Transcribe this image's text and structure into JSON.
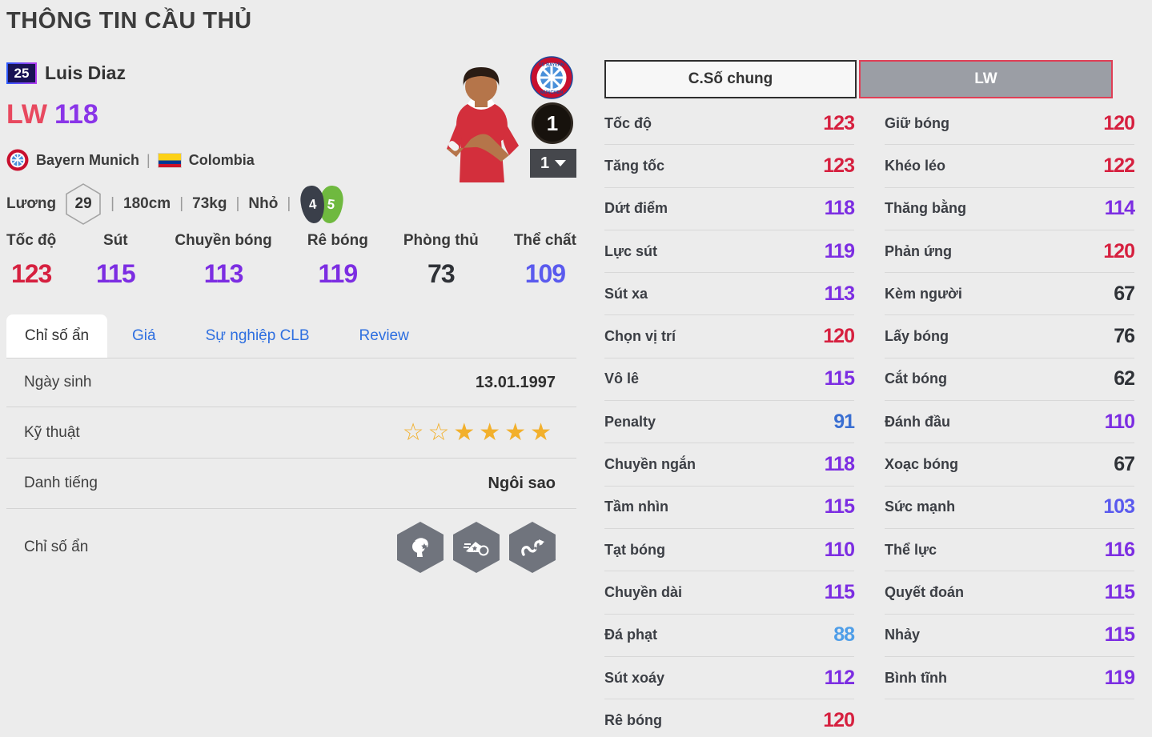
{
  "page": {
    "title": "THÔNG TIN CẦU THỦ"
  },
  "player": {
    "number": "25",
    "name": "Luis Diaz",
    "position": "LW",
    "rating": "118",
    "club": "Bayern Munich",
    "nation": "Colombia",
    "separator": "|",
    "salary_label": "Lương",
    "salary": "29",
    "height": "180cm",
    "weight": "73kg",
    "body_type": "Nhỏ",
    "weak_foot_left": "4",
    "weak_foot_right": "5",
    "level": "1",
    "level_selected": "1"
  },
  "main_stats": [
    {
      "label": "Tốc độ",
      "value": 123
    },
    {
      "label": "Sút",
      "value": 115
    },
    {
      "label": "Chuyền bóng",
      "value": 113
    },
    {
      "label": "Rê bóng",
      "value": 119
    },
    {
      "label": "Phòng thủ",
      "value": 73
    },
    {
      "label": "Thể chất",
      "value": 109
    }
  ],
  "tabs": [
    {
      "label": "Chỉ số ẩn",
      "active": true
    },
    {
      "label": "Giá",
      "active": false
    },
    {
      "label": "Sự nghiệp CLB",
      "active": false
    },
    {
      "label": "Review",
      "active": false
    }
  ],
  "info_rows": {
    "birth_label": "Ngày sinh",
    "birth_value": "13.01.1997",
    "skill_label": "Kỹ thuật",
    "skill_stars_total": 6,
    "skill_stars_filled": 4,
    "fame_label": "Danh tiếng",
    "fame_value": "Ngôi sao",
    "hidden_label": "Chỉ số ẩn",
    "hidden_badges": [
      "head-trait",
      "shooting-trait",
      "dribbling-trait"
    ]
  },
  "stat_panel": {
    "general_button": "C.Số chung",
    "position_button": "LW",
    "left_stats": [
      {
        "label": "Tốc độ",
        "value": 123
      },
      {
        "label": "Tăng tốc",
        "value": 123
      },
      {
        "label": "Dứt điểm",
        "value": 118
      },
      {
        "label": "Lực sút",
        "value": 119
      },
      {
        "label": "Sút xa",
        "value": 113
      },
      {
        "label": "Chọn vị trí",
        "value": 120
      },
      {
        "label": "Vô lê",
        "value": 115
      },
      {
        "label": "Penalty",
        "value": 91
      },
      {
        "label": "Chuyền ngắn",
        "value": 118
      },
      {
        "label": "Tầm nhìn",
        "value": 115
      },
      {
        "label": "Tạt bóng",
        "value": 110
      },
      {
        "label": "Chuyền dài",
        "value": 115
      },
      {
        "label": "Đá phạt",
        "value": 88
      },
      {
        "label": "Sút xoáy",
        "value": 112
      },
      {
        "label": "Rê bóng",
        "value": 120
      }
    ],
    "right_stats": [
      {
        "label": "Giữ bóng",
        "value": 120
      },
      {
        "label": "Khéo léo",
        "value": 122
      },
      {
        "label": "Thăng bằng",
        "value": 114
      },
      {
        "label": "Phản ứng",
        "value": 120
      },
      {
        "label": "Kèm người",
        "value": 67
      },
      {
        "label": "Lấy bóng",
        "value": 76
      },
      {
        "label": "Cắt bóng",
        "value": 62
      },
      {
        "label": "Đánh đầu",
        "value": 110
      },
      {
        "label": "Xoạc bóng",
        "value": 67
      },
      {
        "label": "Sức mạnh",
        "value": 103
      },
      {
        "label": "Thể lực",
        "value": 116
      },
      {
        "label": "Quyết đoán",
        "value": 115
      },
      {
        "label": "Nhảy",
        "value": 115
      },
      {
        "label": "Bình tĩnh",
        "value": 119
      }
    ]
  },
  "colors": {
    "tier_120_plus": "#d6203f",
    "tier_110_119": "#7c2de2",
    "tier_100_109": "#5a5aee",
    "tier_90_99": "#3a6fd2",
    "tier_80_89": "#4f9ee8",
    "tier_below_80": "#2f3237",
    "position_text": "#e8495f",
    "rating_text": "#8a35e8",
    "tab_link": "#2e6fe0",
    "star_gold": "#f2b02c",
    "boot_green": "#6fb93f",
    "boot_dark": "#3a3f4a",
    "hex_gray": "#70747d",
    "accent_border": "#e03f56"
  }
}
